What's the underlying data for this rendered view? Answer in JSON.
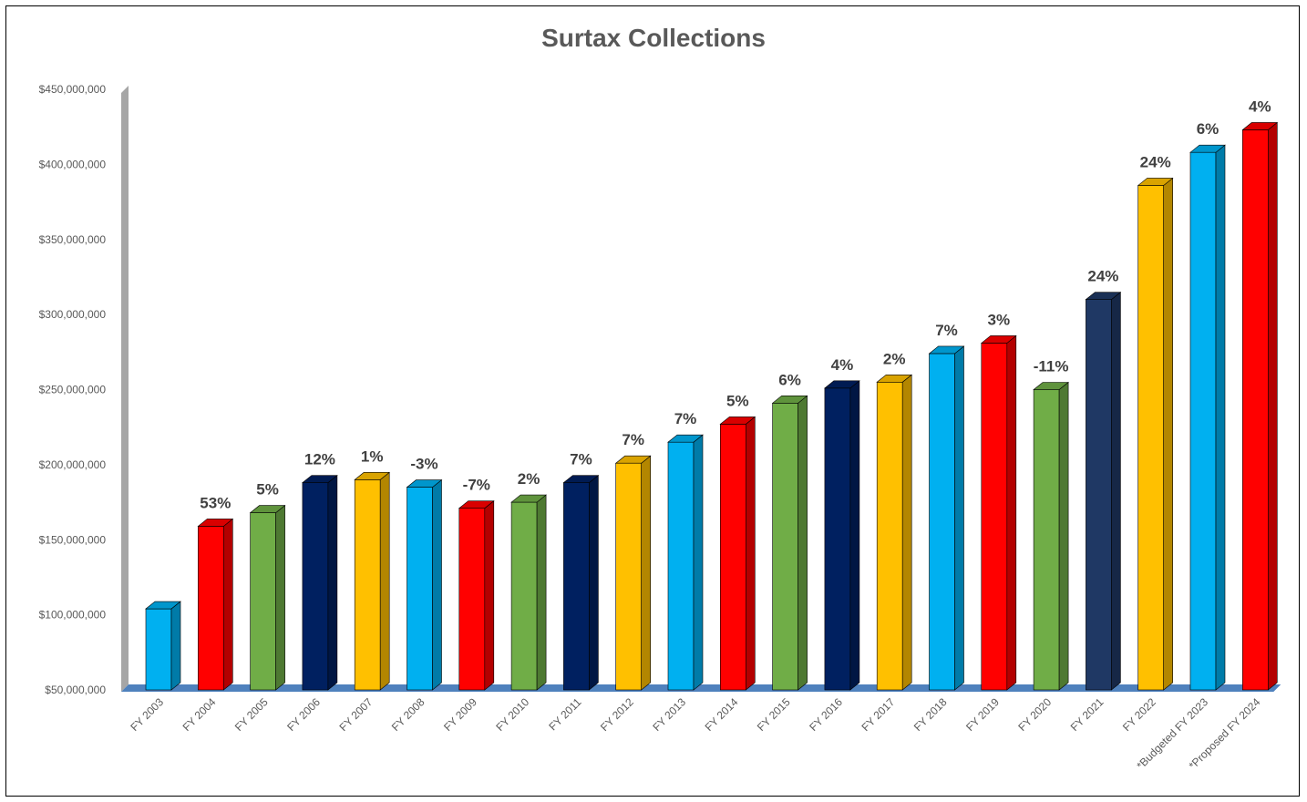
{
  "chart_data": {
    "type": "bar",
    "title": "Surtax Collections",
    "xlabel": "",
    "ylabel": "",
    "ylim": [
      50000000,
      450000000
    ],
    "yticks": [
      50000000,
      100000000,
      150000000,
      200000000,
      250000000,
      300000000,
      350000000,
      400000000,
      450000000
    ],
    "ytick_labels": [
      "$50,000,000",
      "$100,000,000",
      "$150,000,000",
      "$200,000,000",
      "$250,000,000",
      "$300,000,000",
      "$350,000,000",
      "$400,000,000",
      "$450,000,000"
    ],
    "categories": [
      "FY 2003",
      "FY 2004",
      "FY 2005",
      "FY 2006",
      "FY 2007",
      "FY 2008",
      "FY 2009",
      "FY 2010",
      "FY 2011",
      "FY 2012",
      "FY 2013",
      "FY 2014",
      "FY 2015",
      "FY 2016",
      "FY 2017",
      "FY 2018",
      "FY 2019",
      "FY 2020",
      "FY 2021",
      "FY 2022",
      "*Budgeted FY 2023",
      "*Proposed FY 2024"
    ],
    "values": [
      104000000,
      159000000,
      168000000,
      188000000,
      190000000,
      185000000,
      171000000,
      175000000,
      188000000,
      201000000,
      215000000,
      227000000,
      241000000,
      251000000,
      255000000,
      274000000,
      281000000,
      250000000,
      310000000,
      386000000,
      408000000,
      423000000
    ],
    "data_labels": [
      "",
      "53%",
      "5%",
      "12%",
      "1%",
      "-3%",
      "-7%",
      "2%",
      "7%",
      "7%",
      "7%",
      "5%",
      "6%",
      "4%",
      "2%",
      "7%",
      "3%",
      "-11%",
      "24%",
      "24%",
      "6%",
      "4%"
    ],
    "bar_colors": [
      "#00B0F0",
      "#FF0000",
      "#70AD47",
      "#002060",
      "#FFC000",
      "#00B0F0",
      "#FF0000",
      "#70AD47",
      "#002060",
      "#FFC000",
      "#00B0F0",
      "#FF0000",
      "#70AD47",
      "#002060",
      "#FFC000",
      "#00B0F0",
      "#FF0000",
      "#70AD47",
      "#1F3864",
      "#FFC000",
      "#00B0F0",
      "#FF0000"
    ],
    "grid": false,
    "legend": "none"
  }
}
